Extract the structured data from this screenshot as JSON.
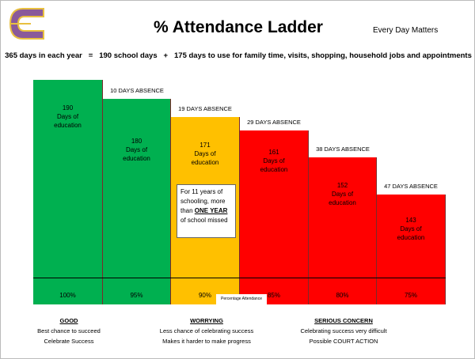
{
  "title": "% Attendance Ladder",
  "tagline": "Every Day Matters",
  "equation": "365 days in each year   =   190 school days   +   175 days to use for family time, visits, shopping, household jobs and appointments",
  "colors": {
    "good": "#00b050",
    "worrying": "#ffc000",
    "serious": "#ff0000"
  },
  "bars": [
    {
      "days": "190",
      "label": "Days of education",
      "percent": "100%",
      "absence": "",
      "color": "#00b050"
    },
    {
      "days": "180",
      "label": "Days of education",
      "percent": "95%",
      "absence": "10 DAYS ABSENCE",
      "color": "#00b050"
    },
    {
      "days": "171",
      "label": "Days of education",
      "percent": "90%",
      "absence": "19 DAYS ABSENCE",
      "color": "#ffc000"
    },
    {
      "days": "161",
      "label": "Days of education",
      "percent": "85%",
      "absence": "29 DAYS ABSENCE",
      "color": "#ff0000"
    },
    {
      "days": "152",
      "label": "Days of education",
      "percent": "80%",
      "absence": "38 DAYS ABSENCE",
      "color": "#ff0000"
    },
    {
      "days": "143",
      "label": "Days of education",
      "percent": "75%",
      "absence": "47 DAYS ABSENCE",
      "color": "#ff0000"
    }
  ],
  "note": {
    "pre": "For 11 years of schooling, more than ",
    "emph": "ONE YEAR",
    "post": " of school missed"
  },
  "percentage_label": "Percentage Attendance",
  "captions": [
    {
      "heading": "GOOD",
      "lines": [
        "Best chance to succeed",
        "Celebrate Success"
      ]
    },
    {
      "heading": "WORRYING",
      "lines": [
        "Less chance of celebrating success",
        "Makes it harder to make progress"
      ]
    },
    {
      "heading": "SERIOUS CONCERN",
      "lines": [
        "Celebrating success very difficult",
        "Possible COURT ACTION"
      ]
    }
  ]
}
